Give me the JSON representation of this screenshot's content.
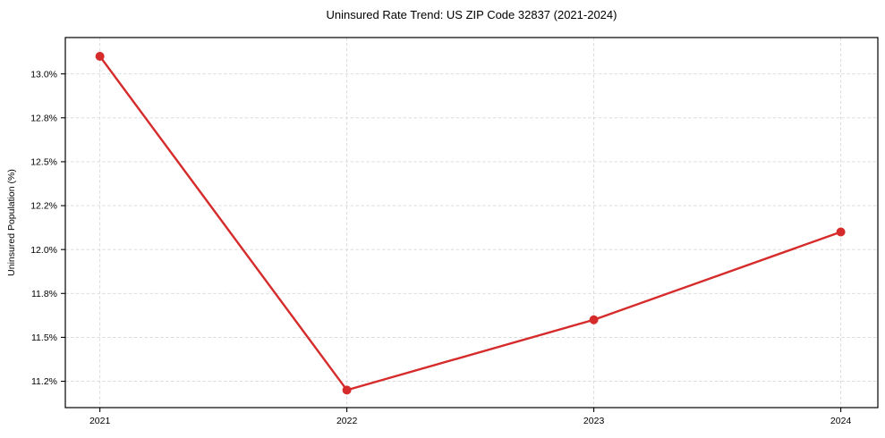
{
  "chart_data": {
    "type": "line",
    "title": "Uninsured Rate Trend: US ZIP Code 32837 (2021-2024)",
    "xlabel": "",
    "ylabel": "Uninsured Population (%)",
    "x": [
      2021,
      2022,
      2023,
      2024
    ],
    "x_tick_labels": [
      "2021",
      "2022",
      "2023",
      "2024"
    ],
    "values": [
      13.1,
      11.2,
      11.6,
      12.1
    ],
    "y_ticks": [
      {
        "value": 11.25,
        "label": "11.2%"
      },
      {
        "value": 11.5,
        "label": "11.5%"
      },
      {
        "value": 11.75,
        "label": "11.8%"
      },
      {
        "value": 12.0,
        "label": "12.0%"
      },
      {
        "value": 12.25,
        "label": "12.2%"
      },
      {
        "value": 12.5,
        "label": "12.5%"
      },
      {
        "value": 12.75,
        "label": "12.8%"
      },
      {
        "value": 13.0,
        "label": "13.0%"
      }
    ],
    "xlim": [
      2020.86,
      2024.15
    ],
    "ylim": [
      11.1,
      13.207
    ],
    "grid": true,
    "grid_style": "dashed",
    "legend": "none",
    "marker": "circle",
    "colors": {
      "line": "#d62b2b",
      "grid": "#d8d8d8",
      "spine": "#000000",
      "text": "#000000"
    }
  }
}
